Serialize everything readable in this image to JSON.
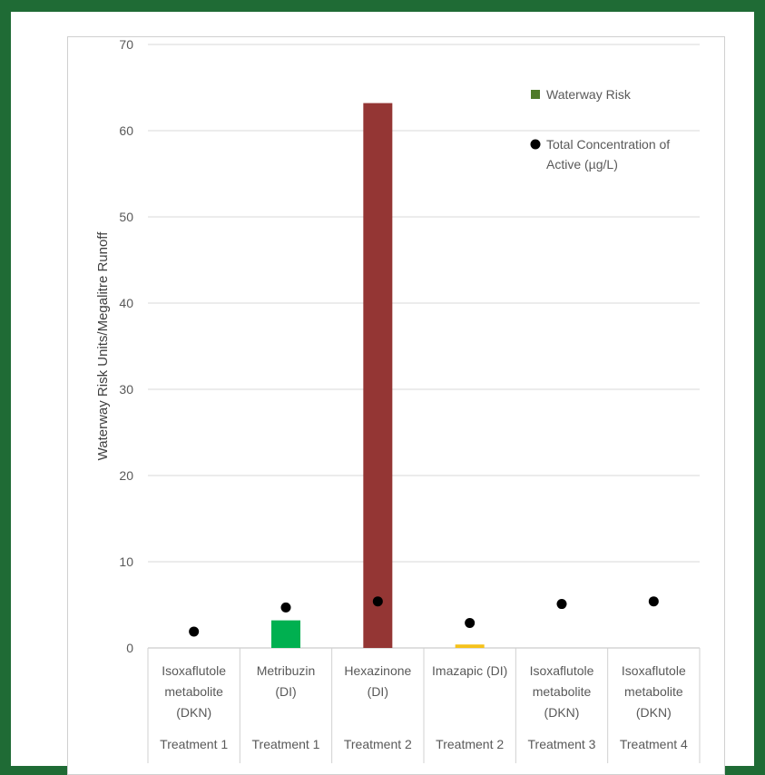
{
  "chart_data": {
    "type": "bar",
    "ylabel": "Waterway Risk Units/Megalitre Runoff",
    "ylim": [
      0,
      70
    ],
    "yticks": [
      0,
      10,
      20,
      30,
      40,
      50,
      60,
      70
    ],
    "categories": [
      {
        "lines": [
          "Isoxaflutole",
          "metabolite",
          "(DKN)"
        ],
        "group": "Treatment 1"
      },
      {
        "lines": [
          "Metribuzin",
          "(DI)"
        ],
        "group": "Treatment 1"
      },
      {
        "lines": [
          "Hexazinone",
          "(DI)"
        ],
        "group": "Treatment 2"
      },
      {
        "lines": [
          "Imazapic (DI)"
        ],
        "group": "Treatment 2"
      },
      {
        "lines": [
          "Isoxaflutole",
          "metabolite",
          "(DKN)"
        ],
        "group": "Treatment 3"
      },
      {
        "lines": [
          "Isoxaflutole",
          "metabolite",
          "(DKN)"
        ],
        "group": "Treatment 4"
      }
    ],
    "series": [
      {
        "name": "Waterway Risk",
        "kind": "bar",
        "values": [
          0,
          3.2,
          63.2,
          0.4,
          0,
          0
        ],
        "colors": [
          "#00b050",
          "#00b050",
          "#943634",
          "#f5c21b",
          "#00b050",
          "#00b050"
        ]
      },
      {
        "name": "Total Concentration of Active (µg/L)",
        "kind": "scatter",
        "values": [
          1.9,
          4.7,
          5.4,
          2.9,
          5.1,
          5.4
        ],
        "color": "#000000"
      }
    ],
    "legend": {
      "position": "top-right",
      "items": [
        {
          "lines": [
            "Waterway Risk"
          ],
          "marker": "square",
          "color": "#4f7a28"
        },
        {
          "lines": [
            "Total Concentration of",
            "Active (µg/L)"
          ],
          "marker": "circle",
          "color": "#000000"
        }
      ]
    },
    "grid": true
  }
}
